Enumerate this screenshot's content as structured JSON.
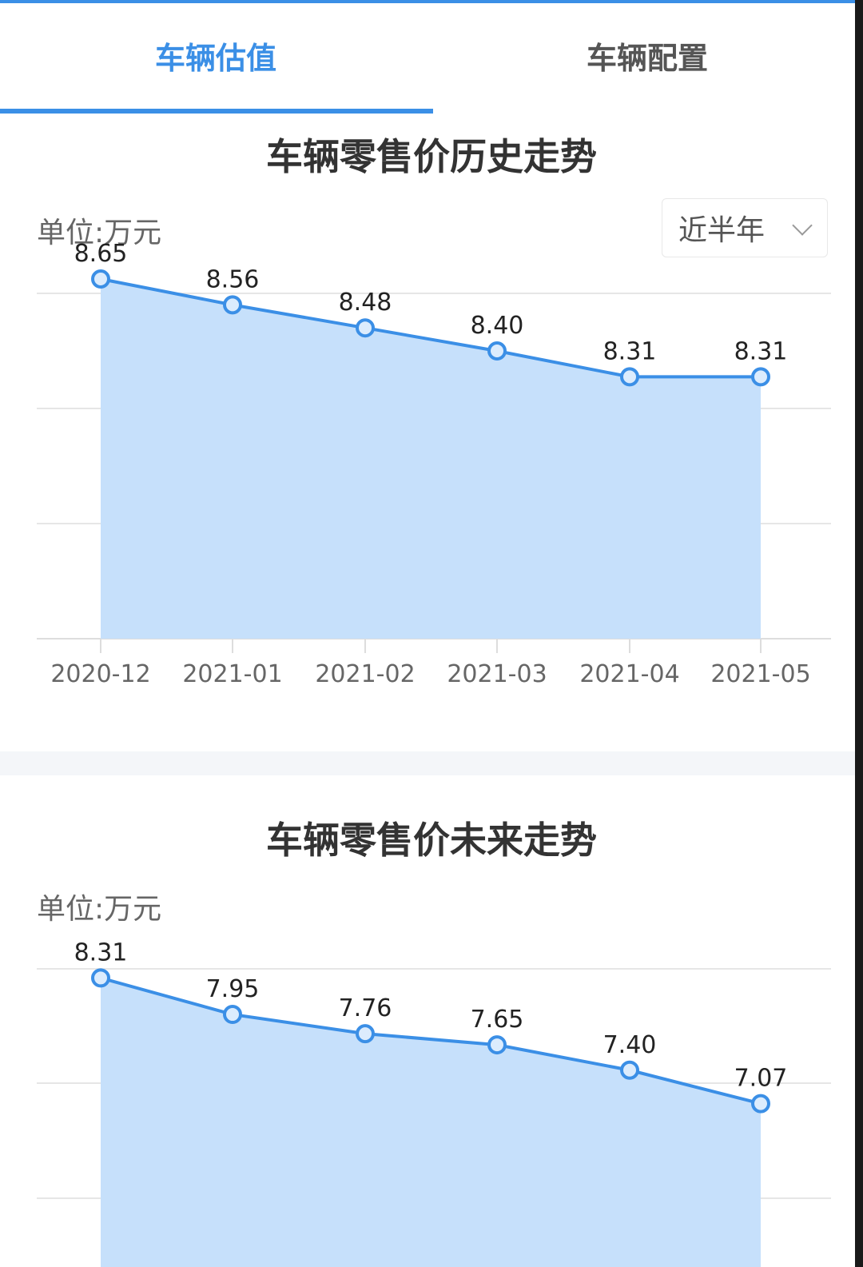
{
  "tabs": [
    {
      "label": "车辆估值",
      "active": true
    },
    {
      "label": "车辆配置",
      "active": false
    }
  ],
  "history": {
    "unit_label": "单位:万元",
    "period_select": "近半年",
    "chart_data": {
      "type": "area",
      "title": "车辆零售价历史走势",
      "categories": [
        "2020-12",
        "2021-01",
        "2021-02",
        "2021-03",
        "2021-04",
        "2021-05"
      ],
      "values": [
        8.65,
        8.56,
        8.48,
        8.4,
        8.31,
        8.31
      ],
      "value_labels": [
        "8.65",
        "8.56",
        "8.48",
        "8.40",
        "8.31",
        "8.31"
      ],
      "ylim": [
        7.4,
        8.6
      ],
      "grid": true,
      "color": "#3b8fe6",
      "fill": "#c6e0fb"
    }
  },
  "future": {
    "unit_label": "单位:万元",
    "chart_data": {
      "type": "area",
      "title": "车辆零售价未来走势",
      "values": [
        8.31,
        7.95,
        7.76,
        7.65,
        7.4,
        7.07
      ],
      "value_labels": [
        "8.31",
        "7.95",
        "7.76",
        "7.65",
        "7.40",
        "7.07"
      ],
      "ylim": [
        5.0,
        8.4
      ],
      "grid": true,
      "color": "#3b8fe6",
      "fill": "#c6e0fb"
    }
  },
  "colors": {
    "accent": "#3b8fe6",
    "area_fill": "#c6e0fb",
    "grid": "#e6e6e6"
  }
}
